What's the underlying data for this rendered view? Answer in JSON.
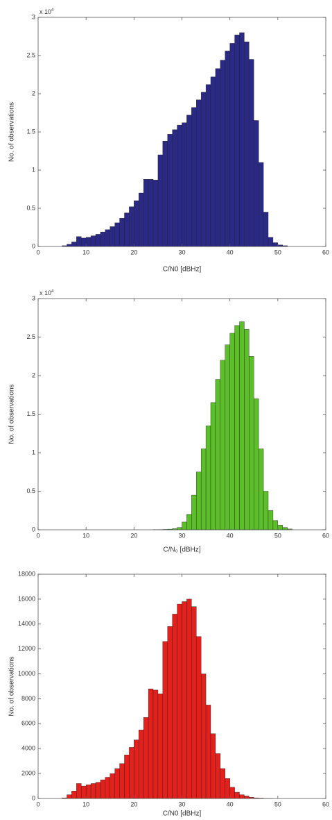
{
  "chart_data": [
    {
      "type": "histogram",
      "color": "#2a2a86",
      "x_label": "C/N0 [dBHz]",
      "y_label": "No. of observations",
      "y_multiplier": {
        "base": "x 10",
        "exponent": "4"
      },
      "bins": [
        5,
        6,
        7,
        8,
        9,
        10,
        11,
        12,
        13,
        14,
        15,
        16,
        17,
        18,
        19,
        20,
        21,
        22,
        23,
        24,
        25,
        26,
        27,
        28,
        29,
        30,
        31,
        32,
        33,
        34,
        35,
        36,
        37,
        38,
        39,
        40,
        41,
        42,
        43,
        44,
        45,
        46,
        47,
        48,
        49,
        50,
        51,
        52
      ],
      "counts": [
        0.01,
        0.03,
        0.06,
        0.13,
        0.11,
        0.12,
        0.14,
        0.16,
        0.19,
        0.22,
        0.26,
        0.31,
        0.37,
        0.44,
        0.52,
        0.6,
        0.7,
        0.88,
        0.88,
        0.87,
        1.2,
        1.38,
        1.47,
        1.53,
        1.59,
        1.62,
        1.72,
        1.82,
        1.92,
        2.02,
        2.12,
        2.22,
        2.33,
        2.44,
        2.56,
        2.66,
        2.77,
        2.8,
        2.68,
        2.45,
        1.65,
        1.1,
        0.45,
        0.12,
        0.05,
        0.02,
        0.01
      ],
      "xlim": [
        0,
        60
      ],
      "xticks": [
        0,
        10,
        20,
        30,
        40,
        50,
        60
      ],
      "ylim": [
        0,
        3
      ],
      "yticks": [
        0,
        0.5,
        1,
        1.5,
        2,
        2.5,
        3
      ]
    },
    {
      "type": "histogram",
      "color": "#5cbf2a",
      "x_label": "C/N₀ [dBHz]",
      "y_label": "No. of observations",
      "y_multiplier": {
        "base": "x 10",
        "exponent": "4"
      },
      "bins": [
        24,
        25,
        26,
        27,
        28,
        29,
        30,
        31,
        32,
        33,
        34,
        35,
        36,
        37,
        38,
        39,
        40,
        41,
        42,
        43,
        44,
        45,
        46,
        47,
        48,
        49,
        50,
        51,
        52,
        53
      ],
      "counts": [
        0.002,
        0.003,
        0.005,
        0.008,
        0.015,
        0.03,
        0.1,
        0.2,
        0.45,
        0.75,
        1.05,
        1.35,
        1.65,
        1.95,
        2.2,
        2.4,
        2.55,
        2.65,
        2.7,
        2.6,
        2.25,
        1.7,
        1.05,
        0.5,
        0.25,
        0.12,
        0.06,
        0.03,
        0.01
      ],
      "xlim": [
        0,
        60
      ],
      "xticks": [
        0,
        10,
        20,
        30,
        40,
        50,
        60
      ],
      "ylim": [
        0,
        3
      ],
      "yticks": [
        0,
        0.5,
        1,
        1.5,
        2,
        2.5,
        3
      ]
    },
    {
      "type": "histogram",
      "color": "#e3201b",
      "x_label": "C/N0 [dBHz]",
      "y_label": "No. of observations",
      "bins": [
        5,
        6,
        7,
        8,
        9,
        10,
        11,
        12,
        13,
        14,
        15,
        16,
        17,
        18,
        19,
        20,
        21,
        22,
        23,
        24,
        25,
        26,
        27,
        28,
        29,
        30,
        31,
        32,
        33,
        34,
        35,
        36,
        37,
        38,
        39,
        40,
        41,
        42,
        43,
        44,
        45,
        46,
        47,
        48,
        49
      ],
      "counts": [
        50,
        300,
        600,
        1200,
        1000,
        1100,
        1200,
        1300,
        1500,
        1700,
        2000,
        2400,
        2800,
        3500,
        4100,
        4700,
        5500,
        6500,
        8800,
        8700,
        8400,
        12600,
        13800,
        14800,
        15600,
        15800,
        16000,
        15400,
        13000,
        10000,
        7500,
        5200,
        3600,
        2400,
        1600,
        900,
        500,
        300,
        200,
        100,
        50,
        30,
        10,
        5
      ],
      "xlim": [
        0,
        60
      ],
      "xticks": [
        0,
        10,
        20,
        30,
        40,
        50,
        60
      ],
      "ylim": [
        0,
        18000
      ],
      "yticks": [
        0,
        2000,
        4000,
        6000,
        8000,
        10000,
        12000,
        14000,
        16000,
        18000
      ]
    }
  ]
}
